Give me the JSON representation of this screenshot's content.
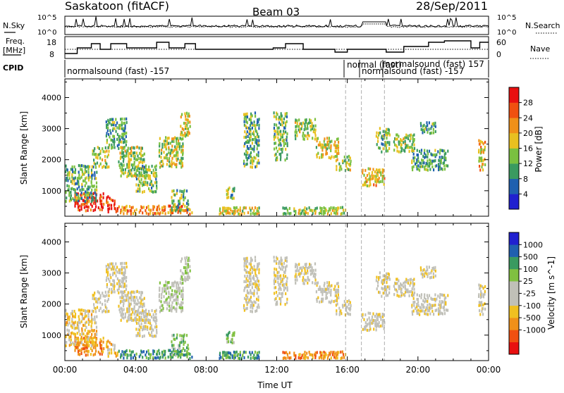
{
  "header": {
    "station": "Saskatoon (fitACF)",
    "beam": "Beam 03",
    "date": "28/Sep/2011"
  },
  "strip": {
    "nsky_label": "N.Sky",
    "nsky_ticks": [
      "10^5",
      "10^0"
    ],
    "nsearch_label": "N.Search",
    "nsearch_ticks": [
      "10^5",
      "10^0"
    ],
    "freq_label_1": "Freq.",
    "freq_label_2": "[MHz]",
    "freq_ticks": [
      "18",
      "8"
    ],
    "nave_label": "Nave",
    "nave_ticks": [
      "60",
      "0"
    ]
  },
  "cpid": {
    "label": "CPID",
    "segments": [
      {
        "text": "normalsound (fast) -157"
      },
      {
        "text": "normal (fast)"
      },
      {
        "text": "normalsound (fast) -157"
      },
      {
        "text": "normalsound (fast) 157"
      }
    ]
  },
  "colors": {
    "power": [
      "#2020d0",
      "#2060b0",
      "#3a9a60",
      "#7ac040",
      "#e8c020",
      "#f09018",
      "#f05010",
      "#e81010"
    ],
    "velocity": [
      "#e81010",
      "#f05010",
      "#f09018",
      "#f0c020",
      "#c0c0b8",
      "#c0c0b8",
      "#80c040",
      "#3a9a60",
      "#2060b0",
      "#2020d0"
    ]
  },
  "chart_data": [
    {
      "type": "heatmap",
      "name": "power-panel",
      "ylabel": "Slant Range [km]",
      "xlabel": "",
      "xlim": [
        "00:00",
        "24:00"
      ],
      "ylim": [
        180,
        4600
      ],
      "x_ticks": [
        "00:00",
        "04:00",
        "08:00",
        "12:00",
        "16:00",
        "20:00",
        "00:00"
      ],
      "y_ticks": [
        1000,
        2000,
        3000,
        4000
      ],
      "colorbar": {
        "label": "Power [dB]",
        "ticks": [
          "4",
          "8",
          "12",
          "16",
          "20",
          "24",
          "28"
        ],
        "range": [
          0,
          32
        ]
      }
    },
    {
      "type": "heatmap",
      "name": "velocity-panel",
      "ylabel": "Slant Range [km]",
      "xlabel": "Time UT",
      "xlim": [
        "00:00",
        "24:00"
      ],
      "ylim": [
        180,
        4600
      ],
      "x_ticks": [
        "00:00",
        "04:00",
        "08:00",
        "12:00",
        "16:00",
        "20:00",
        "00:00"
      ],
      "y_ticks": [
        1000,
        2000,
        3000,
        4000
      ],
      "colorbar": {
        "label": "Velocity  [m s^-1]",
        "ticks": [
          "1000",
          "500",
          "100",
          "25",
          "-25",
          "-100",
          "-500",
          "-1000"
        ]
      }
    }
  ],
  "echo_regions": [
    {
      "t0": 0.5,
      "t1": 2.2,
      "r0": 300,
      "r1": 900,
      "p": 0.95,
      "v": 2
    },
    {
      "t0": 0.0,
      "t1": 1.8,
      "r0": 600,
      "r1": 1800,
      "p": 0.35,
      "v": 3
    },
    {
      "t0": 2.3,
      "t1": 3.0,
      "r0": 250,
      "r1": 800,
      "p": 0.95,
      "v": 3
    },
    {
      "t0": 3.0,
      "t1": 7.2,
      "r0": 200,
      "r1": 500,
      "p": 0.75,
      "v": 7
    },
    {
      "t0": 1.5,
      "t1": 2.5,
      "r0": 1700,
      "r1": 2400,
      "p": 0.45,
      "v": 4
    },
    {
      "t0": 2.3,
      "t1": 3.5,
      "r0": 2300,
      "r1": 3300,
      "p": 0.3,
      "v": 4
    },
    {
      "t0": 3.0,
      "t1": 4.5,
      "r0": 1400,
      "r1": 2400,
      "p": 0.45,
      "v": 4
    },
    {
      "t0": 4.0,
      "t1": 5.2,
      "r0": 900,
      "r1": 1800,
      "p": 0.4,
      "v": 4
    },
    {
      "t0": 5.3,
      "t1": 6.7,
      "r0": 1700,
      "r1": 2700,
      "p": 0.5,
      "v": 5
    },
    {
      "t0": 6.5,
      "t1": 7.1,
      "r0": 2700,
      "r1": 3500,
      "p": 0.55,
      "v": 5
    },
    {
      "t0": 6.0,
      "t1": 7.0,
      "r0": 300,
      "r1": 1000,
      "p": 0.4,
      "v": 6
    },
    {
      "t0": 8.7,
      "t1": 11.0,
      "r0": 200,
      "r1": 450,
      "p": 0.55,
      "v": 7
    },
    {
      "t0": 9.1,
      "t1": 9.6,
      "r0": 700,
      "r1": 1100,
      "p": 0.4,
      "v": 6
    },
    {
      "t0": 10.1,
      "t1": 11.0,
      "r0": 1700,
      "r1": 3500,
      "p": 0.35,
      "v": 4
    },
    {
      "t0": 11.8,
      "t1": 12.6,
      "r0": 1900,
      "r1": 3500,
      "p": 0.4,
      "v": 4
    },
    {
      "t0": 12.3,
      "t1": 15.9,
      "r0": 200,
      "r1": 450,
      "p": 0.5,
      "v": 2
    },
    {
      "t0": 13.0,
      "t1": 14.2,
      "r0": 2600,
      "r1": 3300,
      "p": 0.45,
      "v": 4
    },
    {
      "t0": 14.2,
      "t1": 15.5,
      "r0": 2000,
      "r1": 2700,
      "p": 0.55,
      "v": 4
    },
    {
      "t0": 15.3,
      "t1": 16.2,
      "r0": 1600,
      "r1": 2100,
      "p": 0.45,
      "v": 4
    },
    {
      "t0": 16.8,
      "t1": 18.1,
      "r0": 1100,
      "r1": 1700,
      "p": 0.6,
      "v": 4
    },
    {
      "t0": 17.6,
      "t1": 18.4,
      "r0": 2200,
      "r1": 3000,
      "p": 0.4,
      "v": 4
    },
    {
      "t0": 18.6,
      "t1": 19.8,
      "r0": 2200,
      "r1": 2800,
      "p": 0.45,
      "v": 4
    },
    {
      "t0": 19.6,
      "t1": 21.7,
      "r0": 1600,
      "r1": 2300,
      "p": 0.3,
      "v": 4
    },
    {
      "t0": 20.1,
      "t1": 21.0,
      "r0": 2800,
      "r1": 3200,
      "p": 0.3,
      "v": 4
    },
    {
      "t0": 23.4,
      "t1": 23.8,
      "r0": 1600,
      "r1": 2600,
      "p": 0.6,
      "v": 4
    }
  ]
}
